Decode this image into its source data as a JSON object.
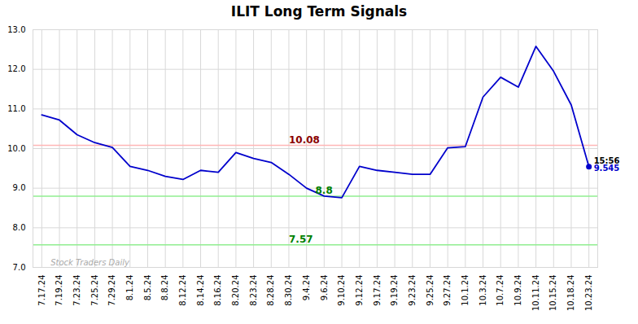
{
  "chart_data": {
    "type": "line",
    "title": "ILIT Long Term Signals",
    "categories": [
      "7.17.24",
      "7.19.24",
      "7.23.24",
      "7.25.24",
      "7.29.24",
      "8.1.24",
      "8.5.24",
      "8.8.24",
      "8.12.24",
      "8.14.24",
      "8.16.24",
      "8.20.24",
      "8.23.24",
      "8.28.24",
      "8.30.24",
      "9.4.24",
      "9.6.24",
      "9.10.24",
      "9.12.24",
      "9.17.24",
      "9.19.24",
      "9.23.24",
      "9.25.24",
      "9.27.24",
      "10.1.24",
      "10.3.24",
      "10.7.24",
      "10.9.24",
      "10.11.24",
      "10.15.24",
      "10.18.24",
      "10.23.24"
    ],
    "values": [
      10.85,
      10.72,
      10.35,
      10.15,
      10.03,
      9.55,
      9.45,
      9.3,
      9.22,
      9.45,
      9.4,
      9.9,
      9.75,
      9.65,
      9.35,
      9.0,
      8.8,
      8.76,
      9.55,
      9.45,
      9.4,
      9.35,
      9.35,
      10.02,
      10.05,
      11.3,
      11.8,
      11.55,
      12.58,
      11.95,
      11.1,
      9.545
    ],
    "color": "#0000cc",
    "ylim": [
      7,
      13
    ],
    "yticks": [
      7,
      8,
      9,
      10,
      11,
      12,
      13
    ],
    "grid": true,
    "hlines": [
      {
        "y": 10.08,
        "color": "#ffb6b6"
      },
      {
        "y": 8.8,
        "color": "#90ee90"
      },
      {
        "y": 7.57,
        "color": "#90ee90"
      }
    ],
    "annotations": [
      {
        "text": "10.08",
        "y": 10.08,
        "color": "#8b0000"
      },
      {
        "text": "8.8",
        "y": 8.8,
        "color": "#008000"
      },
      {
        "text": "7.57",
        "y": 7.57,
        "color": "#008000"
      }
    ],
    "last_labels": [
      {
        "text": "15:56",
        "color": "#000000"
      },
      {
        "text": "9.545",
        "color": "#0000cc"
      }
    ],
    "watermark": {
      "text": "Stock Traders Daily",
      "color": "#aaaaaa"
    }
  }
}
